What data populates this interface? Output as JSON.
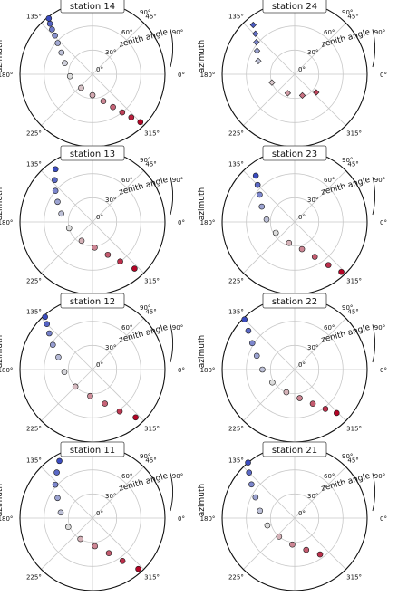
{
  "figure": {
    "background": "#ffffff",
    "marker_edge": "#1a1a1a",
    "grid_color": "#c8c8c8",
    "cmap": [
      "#3b4cc0",
      "#dddddd",
      "#b40426"
    ]
  },
  "chart_data": [
    {
      "type": "scatter",
      "projection": "polar",
      "panel_title": "station 14",
      "xlabel": "azimuth",
      "ylabel": "zenith angle",
      "marker": "circle",
      "theta_ticks": [
        "0°",
        "45°",
        "90°",
        "135°",
        "180°",
        "225°",
        "315°"
      ],
      "r_ticks": [
        "0°",
        "30°",
        "60°",
        "90°"
      ],
      "rlim": [
        0,
        90
      ],
      "series": [
        {
          "points": [
            [
              128,
              88,
              0.0
            ],
            [
              130,
              82,
              0.08
            ],
            [
              132,
              75,
              0.16
            ],
            [
              134,
              67,
              0.24
            ],
            [
              138,
              58,
              0.32
            ],
            [
              145,
              47,
              0.4
            ],
            [
              158,
              37,
              0.46
            ],
            [
              185,
              28,
              0.5
            ],
            [
              230,
              22,
              0.56
            ],
            [
              270,
              26,
              0.62
            ],
            [
              292,
              36,
              0.7
            ],
            [
              302,
              48,
              0.78
            ],
            [
              308,
              60,
              0.86
            ],
            [
              312,
              72,
              0.94
            ],
            [
              315,
              84,
              1.0
            ]
          ]
        }
      ]
    },
    {
      "type": "scatter",
      "projection": "polar",
      "panel_title": "station 24",
      "xlabel": "azimuth",
      "ylabel": "zenith angle",
      "marker": "diamond",
      "theta_ticks": [
        "0°",
        "45°",
        "90°",
        "135°",
        "180°",
        "225°",
        "315°"
      ],
      "r_ticks": [
        "0°",
        "30°",
        "60°",
        "90°"
      ],
      "rlim": [
        0,
        90
      ],
      "series": [
        {
          "points": [
            [
              130,
              80,
              0.05
            ],
            [
              134,
              70,
              0.12
            ],
            [
              140,
              62,
              0.2
            ],
            [
              148,
              55,
              0.3
            ],
            [
              160,
              48,
              0.4
            ],
            [
              200,
              30,
              0.55
            ],
            [
              250,
              25,
              0.65
            ],
            [
              290,
              28,
              0.75
            ],
            [
              320,
              35,
              0.85
            ]
          ]
        }
      ]
    },
    {
      "type": "scatter",
      "projection": "polar",
      "panel_title": "station 13",
      "xlabel": "azimuth",
      "ylabel": "zenith angle",
      "marker": "circle",
      "theta_ticks": [
        "0°",
        "45°",
        "90°",
        "135°",
        "180°",
        "225°",
        "315°"
      ],
      "r_ticks": [
        "0°",
        "30°",
        "60°",
        "90°"
      ],
      "rlim": [
        0,
        90
      ],
      "series": [
        {
          "points": [
            [
              125,
              80,
              0.0
            ],
            [
              132,
              70,
              0.1
            ],
            [
              140,
              60,
              0.2
            ],
            [
              150,
              50,
              0.3
            ],
            [
              165,
              40,
              0.4
            ],
            [
              195,
              30,
              0.5
            ],
            [
              240,
              27,
              0.6
            ],
            [
              275,
              32,
              0.7
            ],
            [
              295,
              45,
              0.8
            ],
            [
              305,
              60,
              0.9
            ],
            [
              312,
              78,
              1.0
            ]
          ]
        }
      ]
    },
    {
      "type": "scatter",
      "projection": "polar",
      "panel_title": "station 23",
      "xlabel": "azimuth",
      "ylabel": "zenith angle",
      "marker": "circle",
      "theta_ticks": [
        "0°",
        "45°",
        "90°",
        "135°",
        "180°",
        "225°",
        "315°"
      ],
      "r_ticks": [
        "0°",
        "30°",
        "60°",
        "90°"
      ],
      "rlim": [
        0,
        90
      ],
      "series": [
        {
          "points": [
            [
              130,
              75,
              0.0
            ],
            [
              135,
              65,
              0.1
            ],
            [
              142,
              55,
              0.2
            ],
            [
              155,
              45,
              0.3
            ],
            [
              175,
              35,
              0.4
            ],
            [
              210,
              27,
              0.5
            ],
            [
              255,
              27,
              0.6
            ],
            [
              285,
              35,
              0.7
            ],
            [
              300,
              50,
              0.8
            ],
            [
              308,
              68,
              0.9
            ],
            [
              313,
              85,
              1.0
            ]
          ]
        }
      ]
    },
    {
      "type": "scatter",
      "projection": "polar",
      "panel_title": "station 12",
      "xlabel": "azimuth",
      "ylabel": "zenith angle",
      "marker": "circle",
      "theta_ticks": [
        "0°",
        "45°",
        "90°",
        "135°",
        "180°",
        "225°",
        "315°"
      ],
      "r_ticks": [
        "0°",
        "30°",
        "60°",
        "90°"
      ],
      "rlim": [
        0,
        90
      ],
      "series": [
        {
          "points": [
            [
              132,
              88,
              0.0
            ],
            [
              135,
              80,
              0.08
            ],
            [
              140,
              70,
              0.18
            ],
            [
              148,
              58,
              0.28
            ],
            [
              160,
              45,
              0.38
            ],
            [
              185,
              35,
              0.48
            ],
            [
              225,
              30,
              0.58
            ],
            [
              265,
              33,
              0.68
            ],
            [
              290,
              45,
              0.78
            ],
            [
              303,
              62,
              0.88
            ],
            [
              312,
              80,
              1.0
            ]
          ]
        }
      ]
    },
    {
      "type": "scatter",
      "projection": "polar",
      "panel_title": "station 22",
      "xlabel": "azimuth",
      "ylabel": "zenith angle",
      "marker": "circle",
      "theta_ticks": [
        "0°",
        "45°",
        "90°",
        "135°",
        "180°",
        "225°",
        "315°"
      ],
      "r_ticks": [
        "0°",
        "30°",
        "60°",
        "90°"
      ],
      "rlim": [
        0,
        90
      ],
      "series": [
        {
          "points": [
            [
              135,
              88,
              0.0
            ],
            [
              140,
              75,
              0.1
            ],
            [
              148,
              62,
              0.2
            ],
            [
              160,
              50,
              0.3
            ],
            [
              180,
              40,
              0.4
            ],
            [
              210,
              32,
              0.5
            ],
            [
              250,
              30,
              0.6
            ],
            [
              280,
              36,
              0.7
            ],
            [
              298,
              48,
              0.8
            ],
            [
              308,
              62,
              0.9
            ],
            [
              314,
              75,
              1.0
            ]
          ]
        }
      ]
    },
    {
      "type": "scatter",
      "projection": "polar",
      "panel_title": "station 11",
      "xlabel": "azimuth",
      "ylabel": "zenith angle",
      "marker": "circle",
      "theta_ticks": [
        "0°",
        "45°",
        "90°",
        "135°",
        "180°",
        "225°",
        "315°"
      ],
      "r_ticks": [
        "0°",
        "30°",
        "60°",
        "90°"
      ],
      "rlim": [
        0,
        90
      ],
      "series": [
        {
          "points": [
            [
              120,
              82,
              0.0
            ],
            [
              128,
              72,
              0.1
            ],
            [
              138,
              62,
              0.2
            ],
            [
              150,
              50,
              0.3
            ],
            [
              170,
              40,
              0.4
            ],
            [
              200,
              32,
              0.5
            ],
            [
              240,
              30,
              0.6
            ],
            [
              275,
              35,
              0.7
            ],
            [
              295,
              48,
              0.8
            ],
            [
              305,
              65,
              0.9
            ],
            [
              312,
              85,
              1.0
            ]
          ]
        }
      ]
    },
    {
      "type": "scatter",
      "projection": "polar",
      "panel_title": "station 21",
      "xlabel": "azimuth",
      "ylabel": "zenith angle",
      "marker": "circle",
      "theta_ticks": [
        "0°",
        "45°",
        "90°",
        "135°",
        "180°",
        "225°",
        "315°"
      ],
      "r_ticks": [
        "0°",
        "30°",
        "60°",
        "90°"
      ],
      "rlim": [
        0,
        90
      ],
      "series": [
        {
          "points": [
            [
              130,
              90,
              0.0
            ],
            [
              135,
              80,
              0.1
            ],
            [
              142,
              68,
              0.2
            ],
            [
              152,
              55,
              0.3
            ],
            [
              168,
              44,
              0.4
            ],
            [
              195,
              35,
              0.5
            ],
            [
              230,
              30,
              0.6
            ],
            [
              265,
              33,
              0.7
            ],
            [
              290,
              42,
              0.8
            ],
            [
              305,
              55,
              0.9
            ]
          ]
        }
      ]
    }
  ]
}
